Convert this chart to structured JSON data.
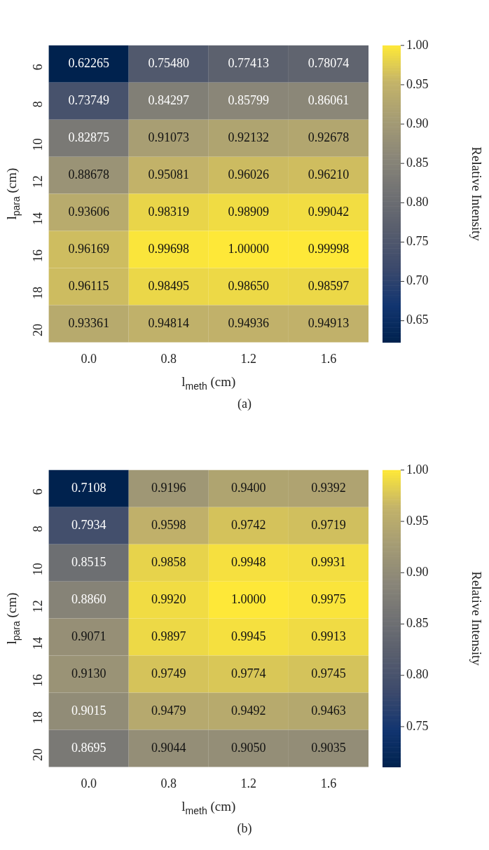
{
  "chart_data": [
    {
      "type": "heatmap",
      "xlabel": "l$_{meth}$ (cm)",
      "ylabel": "l$_{para}$ (cm)",
      "clabel": "Relative Intensity",
      "annotations": [
        "(a)"
      ],
      "categories": [
        "0.0",
        "0.8",
        "1.2",
        "1.6"
      ],
      "y_categories": [
        "6",
        "8",
        "10",
        "12",
        "14",
        "16",
        "18",
        "20"
      ],
      "cells": [
        [
          0.62265,
          0.7548,
          0.77413,
          0.78074
        ],
        [
          0.73749,
          0.84297,
          0.85799,
          0.86061
        ],
        [
          0.82875,
          0.91073,
          0.92132,
          0.92678
        ],
        [
          0.88678,
          0.95081,
          0.96026,
          0.9621
        ],
        [
          0.93606,
          0.98319,
          0.98909,
          0.99042
        ],
        [
          0.96169,
          0.99698,
          1.0,
          0.99998
        ],
        [
          0.96115,
          0.98495,
          0.9865,
          0.98597
        ],
        [
          0.93361,
          0.94814,
          0.94936,
          0.94913
        ]
      ],
      "cell_labels": [
        [
          "0.62265",
          "0.75480",
          "0.77413",
          "0.78074"
        ],
        [
          "0.73749",
          "0.84297",
          "0.85799",
          "0.86061"
        ],
        [
          "0.82875",
          "0.91073",
          "0.92132",
          "0.92678"
        ],
        [
          "0.88678",
          "0.95081",
          "0.96026",
          "0.96210"
        ],
        [
          "0.93606",
          "0.98319",
          "0.98909",
          "0.99042"
        ],
        [
          "0.96169",
          "0.99698",
          "1.00000",
          "0.99998"
        ],
        [
          "0.96115",
          "0.98495",
          "0.98650",
          "0.98597"
        ],
        [
          "0.93361",
          "0.94814",
          "0.94936",
          "0.94913"
        ]
      ],
      "clim": [
        0.62265,
        1.0
      ],
      "cticks": [
        {
          "value": 0.65,
          "label": "0.65"
        },
        {
          "value": 0.7,
          "label": "0.70"
        },
        {
          "value": 0.75,
          "label": "0.75"
        },
        {
          "value": 0.8,
          "label": "0.80"
        },
        {
          "value": 0.85,
          "label": "0.85"
        },
        {
          "value": 0.9,
          "label": "0.90"
        },
        {
          "value": 0.95,
          "label": "0.95"
        },
        {
          "value": 1.0,
          "label": "1.00"
        }
      ]
    },
    {
      "type": "heatmap",
      "xlabel": "l$_{meth}$ (cm)",
      "ylabel": "l$_{para}$ (cm)",
      "clabel": "Relative Intensity",
      "annotations": [
        "(b)"
      ],
      "categories": [
        "0.0",
        "0.8",
        "1.2",
        "1.6"
      ],
      "y_categories": [
        "6",
        "8",
        "10",
        "12",
        "14",
        "16",
        "18",
        "20"
      ],
      "cells": [
        [
          0.7108,
          0.9196,
          0.94,
          0.9392
        ],
        [
          0.7934,
          0.9598,
          0.9742,
          0.9719
        ],
        [
          0.8515,
          0.9858,
          0.9948,
          0.9931
        ],
        [
          0.886,
          0.992,
          1.0,
          0.9975
        ],
        [
          0.9071,
          0.9897,
          0.9945,
          0.9913
        ],
        [
          0.913,
          0.9749,
          0.9774,
          0.9745
        ],
        [
          0.9015,
          0.9479,
          0.9492,
          0.9463
        ],
        [
          0.8695,
          0.9044,
          0.905,
          0.9035
        ]
      ],
      "cell_labels": [
        [
          "0.7108",
          "0.9196",
          "0.9400",
          "0.9392"
        ],
        [
          "0.7934",
          "0.9598",
          "0.9742",
          "0.9719"
        ],
        [
          "0.8515",
          "0.9858",
          "0.9948",
          "0.9931"
        ],
        [
          "0.8860",
          "0.9920",
          "1.0000",
          "0.9975"
        ],
        [
          "0.9071",
          "0.9897",
          "0.9945",
          "0.9913"
        ],
        [
          "0.9130",
          "0.9749",
          "0.9774",
          "0.9745"
        ],
        [
          "0.9015",
          "0.9479",
          "0.9492",
          "0.9463"
        ],
        [
          "0.8695",
          "0.9044",
          "0.9050",
          "0.9035"
        ]
      ],
      "clim": [
        0.7108,
        1.0
      ],
      "cticks": [
        {
          "value": 0.75,
          "label": "0.75"
        },
        {
          "value": 0.8,
          "label": "0.80"
        },
        {
          "value": 0.85,
          "label": "0.85"
        },
        {
          "value": 0.9,
          "label": "0.90"
        },
        {
          "value": 0.95,
          "label": "0.95"
        },
        {
          "value": 1.0,
          "label": "1.00"
        }
      ]
    }
  ]
}
